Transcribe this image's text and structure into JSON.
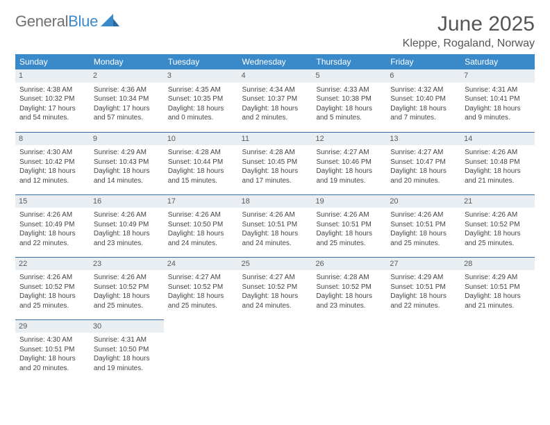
{
  "brand": {
    "name1": "General",
    "name2": "Blue"
  },
  "title": "June 2025",
  "location": "Kleppe, Rogaland, Norway",
  "colors": {
    "header_bg": "#3a89c9",
    "header_text": "#ffffff",
    "daynum_bg": "#e9eef3",
    "row_border": "#3a6ea5",
    "text": "#444444",
    "title_text": "#555555",
    "logo_gray": "#707070",
    "logo_blue": "#3a89c9",
    "background": "#ffffff"
  },
  "typography": {
    "title_fontsize": 30,
    "location_fontsize": 16,
    "dow_fontsize": 12,
    "cell_fontsize": 10,
    "font_family": "Arial"
  },
  "days_of_week": [
    "Sunday",
    "Monday",
    "Tuesday",
    "Wednesday",
    "Thursday",
    "Friday",
    "Saturday"
  ],
  "weeks": [
    [
      {
        "num": "1",
        "sunrise": "Sunrise: 4:38 AM",
        "sunset": "Sunset: 10:32 PM",
        "daylight": "Daylight: 17 hours and 54 minutes."
      },
      {
        "num": "2",
        "sunrise": "Sunrise: 4:36 AM",
        "sunset": "Sunset: 10:34 PM",
        "daylight": "Daylight: 17 hours and 57 minutes."
      },
      {
        "num": "3",
        "sunrise": "Sunrise: 4:35 AM",
        "sunset": "Sunset: 10:35 PM",
        "daylight": "Daylight: 18 hours and 0 minutes."
      },
      {
        "num": "4",
        "sunrise": "Sunrise: 4:34 AM",
        "sunset": "Sunset: 10:37 PM",
        "daylight": "Daylight: 18 hours and 2 minutes."
      },
      {
        "num": "5",
        "sunrise": "Sunrise: 4:33 AM",
        "sunset": "Sunset: 10:38 PM",
        "daylight": "Daylight: 18 hours and 5 minutes."
      },
      {
        "num": "6",
        "sunrise": "Sunrise: 4:32 AM",
        "sunset": "Sunset: 10:40 PM",
        "daylight": "Daylight: 18 hours and 7 minutes."
      },
      {
        "num": "7",
        "sunrise": "Sunrise: 4:31 AM",
        "sunset": "Sunset: 10:41 PM",
        "daylight": "Daylight: 18 hours and 9 minutes."
      }
    ],
    [
      {
        "num": "8",
        "sunrise": "Sunrise: 4:30 AM",
        "sunset": "Sunset: 10:42 PM",
        "daylight": "Daylight: 18 hours and 12 minutes."
      },
      {
        "num": "9",
        "sunrise": "Sunrise: 4:29 AM",
        "sunset": "Sunset: 10:43 PM",
        "daylight": "Daylight: 18 hours and 14 minutes."
      },
      {
        "num": "10",
        "sunrise": "Sunrise: 4:28 AM",
        "sunset": "Sunset: 10:44 PM",
        "daylight": "Daylight: 18 hours and 15 minutes."
      },
      {
        "num": "11",
        "sunrise": "Sunrise: 4:28 AM",
        "sunset": "Sunset: 10:45 PM",
        "daylight": "Daylight: 18 hours and 17 minutes."
      },
      {
        "num": "12",
        "sunrise": "Sunrise: 4:27 AM",
        "sunset": "Sunset: 10:46 PM",
        "daylight": "Daylight: 18 hours and 19 minutes."
      },
      {
        "num": "13",
        "sunrise": "Sunrise: 4:27 AM",
        "sunset": "Sunset: 10:47 PM",
        "daylight": "Daylight: 18 hours and 20 minutes."
      },
      {
        "num": "14",
        "sunrise": "Sunrise: 4:26 AM",
        "sunset": "Sunset: 10:48 PM",
        "daylight": "Daylight: 18 hours and 21 minutes."
      }
    ],
    [
      {
        "num": "15",
        "sunrise": "Sunrise: 4:26 AM",
        "sunset": "Sunset: 10:49 PM",
        "daylight": "Daylight: 18 hours and 22 minutes."
      },
      {
        "num": "16",
        "sunrise": "Sunrise: 4:26 AM",
        "sunset": "Sunset: 10:49 PM",
        "daylight": "Daylight: 18 hours and 23 minutes."
      },
      {
        "num": "17",
        "sunrise": "Sunrise: 4:26 AM",
        "sunset": "Sunset: 10:50 PM",
        "daylight": "Daylight: 18 hours and 24 minutes."
      },
      {
        "num": "18",
        "sunrise": "Sunrise: 4:26 AM",
        "sunset": "Sunset: 10:51 PM",
        "daylight": "Daylight: 18 hours and 24 minutes."
      },
      {
        "num": "19",
        "sunrise": "Sunrise: 4:26 AM",
        "sunset": "Sunset: 10:51 PM",
        "daylight": "Daylight: 18 hours and 25 minutes."
      },
      {
        "num": "20",
        "sunrise": "Sunrise: 4:26 AM",
        "sunset": "Sunset: 10:51 PM",
        "daylight": "Daylight: 18 hours and 25 minutes."
      },
      {
        "num": "21",
        "sunrise": "Sunrise: 4:26 AM",
        "sunset": "Sunset: 10:52 PM",
        "daylight": "Daylight: 18 hours and 25 minutes."
      }
    ],
    [
      {
        "num": "22",
        "sunrise": "Sunrise: 4:26 AM",
        "sunset": "Sunset: 10:52 PM",
        "daylight": "Daylight: 18 hours and 25 minutes."
      },
      {
        "num": "23",
        "sunrise": "Sunrise: 4:26 AM",
        "sunset": "Sunset: 10:52 PM",
        "daylight": "Daylight: 18 hours and 25 minutes."
      },
      {
        "num": "24",
        "sunrise": "Sunrise: 4:27 AM",
        "sunset": "Sunset: 10:52 PM",
        "daylight": "Daylight: 18 hours and 25 minutes."
      },
      {
        "num": "25",
        "sunrise": "Sunrise: 4:27 AM",
        "sunset": "Sunset: 10:52 PM",
        "daylight": "Daylight: 18 hours and 24 minutes."
      },
      {
        "num": "26",
        "sunrise": "Sunrise: 4:28 AM",
        "sunset": "Sunset: 10:52 PM",
        "daylight": "Daylight: 18 hours and 23 minutes."
      },
      {
        "num": "27",
        "sunrise": "Sunrise: 4:29 AM",
        "sunset": "Sunset: 10:51 PM",
        "daylight": "Daylight: 18 hours and 22 minutes."
      },
      {
        "num": "28",
        "sunrise": "Sunrise: 4:29 AM",
        "sunset": "Sunset: 10:51 PM",
        "daylight": "Daylight: 18 hours and 21 minutes."
      }
    ],
    [
      {
        "num": "29",
        "sunrise": "Sunrise: 4:30 AM",
        "sunset": "Sunset: 10:51 PM",
        "daylight": "Daylight: 18 hours and 20 minutes."
      },
      {
        "num": "30",
        "sunrise": "Sunrise: 4:31 AM",
        "sunset": "Sunset: 10:50 PM",
        "daylight": "Daylight: 18 hours and 19 minutes."
      },
      null,
      null,
      null,
      null,
      null
    ]
  ]
}
